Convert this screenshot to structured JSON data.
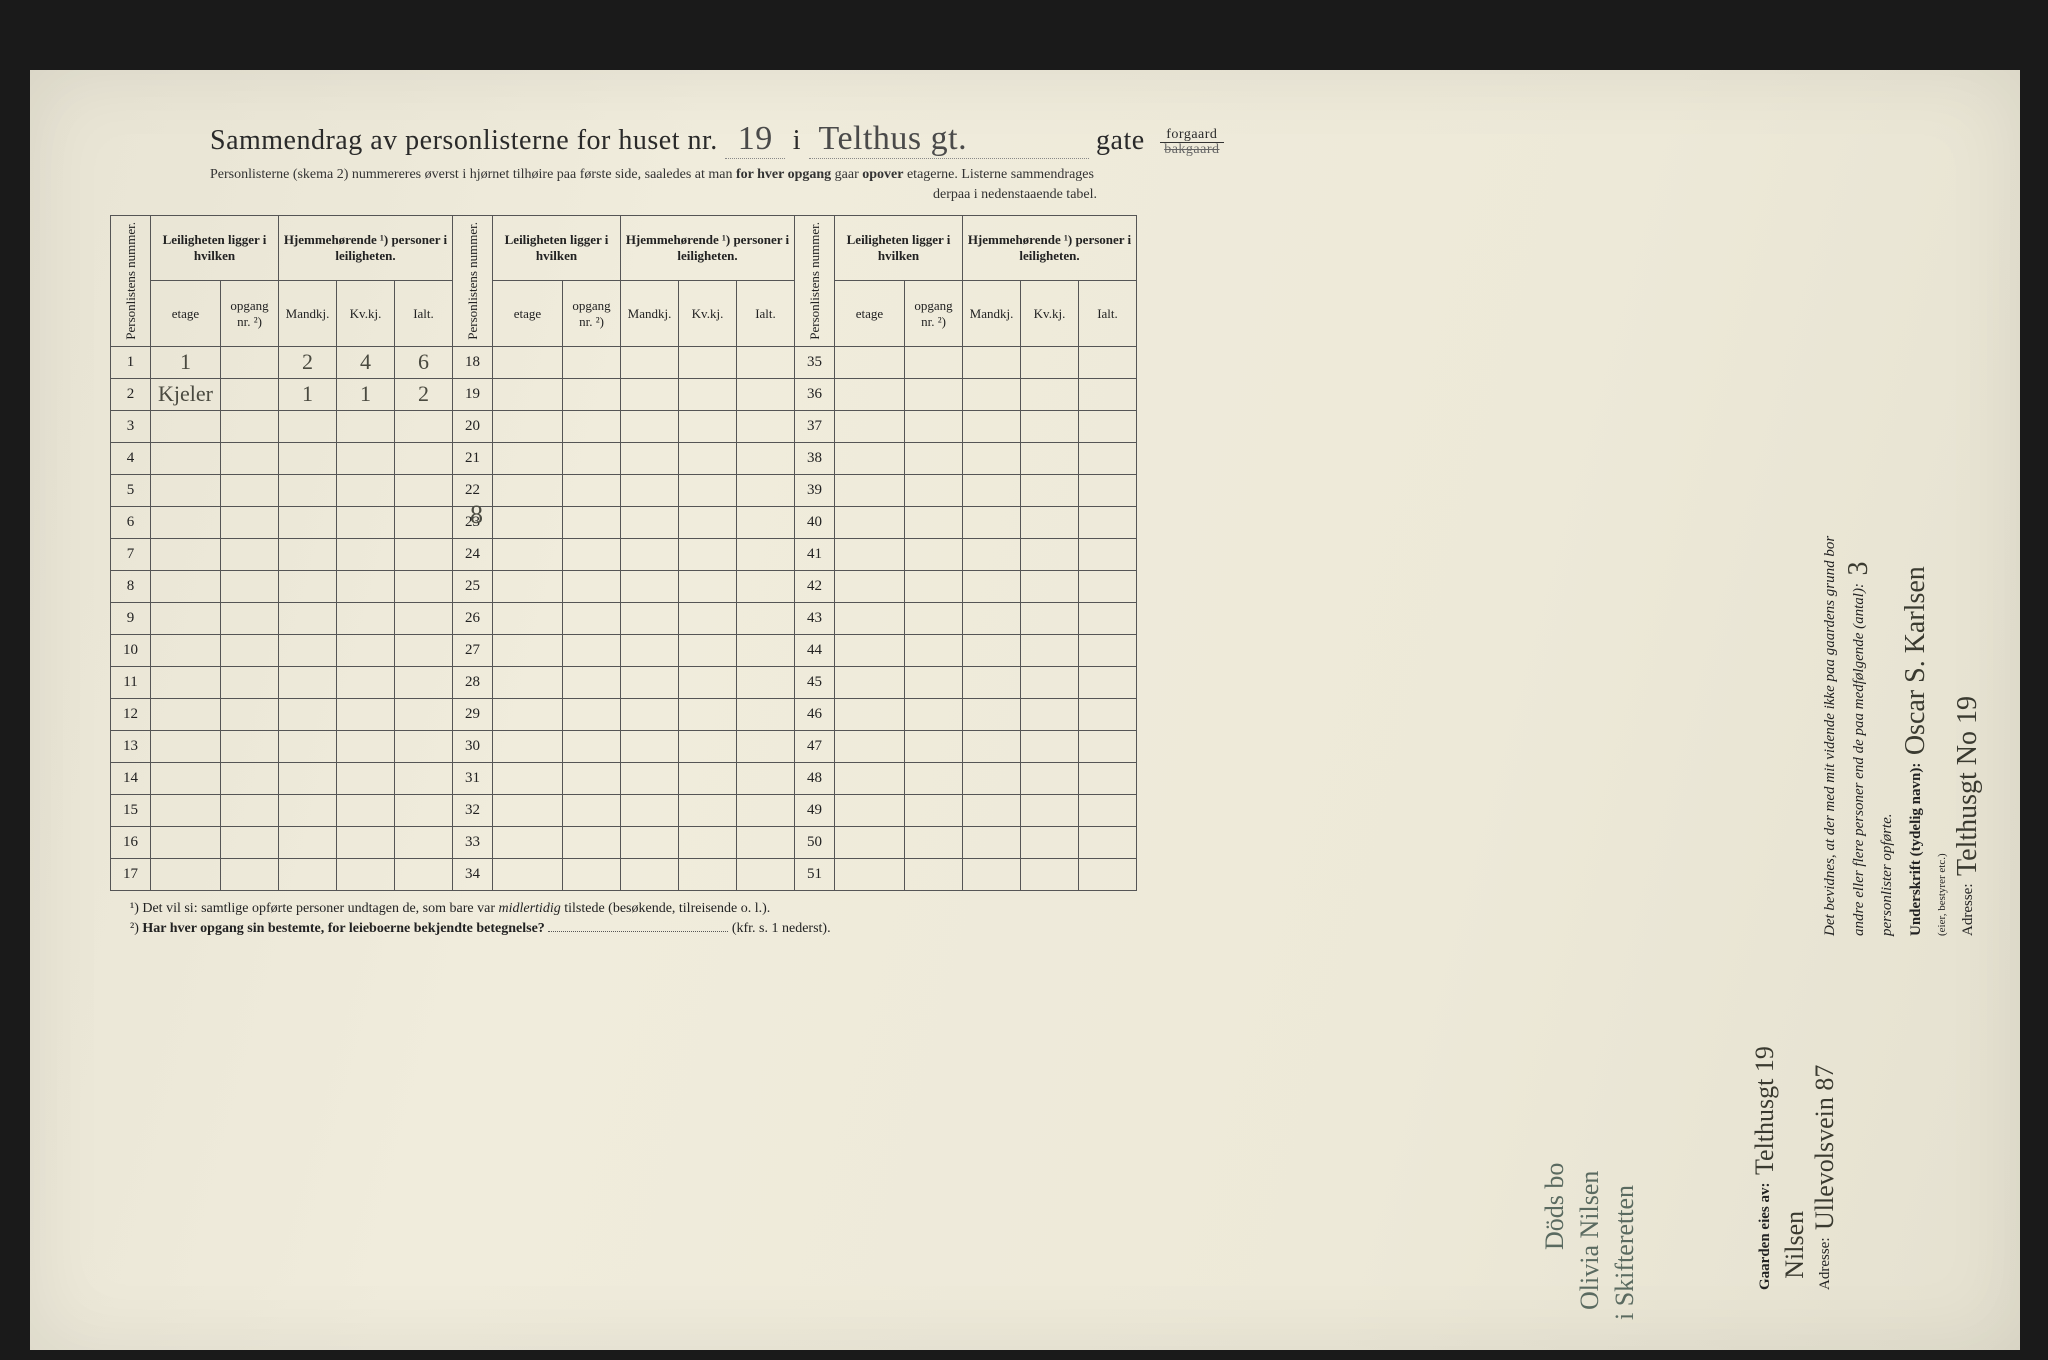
{
  "title_prefix": "Sammendrag av personlisterne for huset nr.",
  "house_nr": "19",
  "sep_i": "i",
  "street_hand": "Telthus gt.",
  "gate_label": "gate",
  "gate_top": "forgaard",
  "gate_bot": "bakgaard",
  "subtitle": "Personlisterne (skema 2) nummereres øverst i hjørnet tilhøire paa første side, saaledes at man ",
  "subtitle_bold": "for hver opgang",
  "subtitle_rest": " gaar ",
  "subtitle_bold2": "opover",
  "subtitle_rest2": " etagerne. Listerne sammendrages",
  "subtitle2": "derpaa i nedenstaaende tabel.",
  "col_personlistens": "Personlistens nummer.",
  "col_leilighet": "Leiligheten ligger i hvilken",
  "col_hjemme": "Hjemmehørende ¹) personer i leiligheten.",
  "sub_etage": "etage",
  "sub_opgang": "opgang nr. ²)",
  "sub_mandkj": "Mandkj.",
  "sub_kvkj": "Kv.kj.",
  "sub_ialt": "Ialt.",
  "rows_a": [
    1,
    2,
    3,
    4,
    5,
    6,
    7,
    8,
    9,
    10,
    11,
    12,
    13,
    14,
    15,
    16,
    17
  ],
  "rows_b": [
    18,
    19,
    20,
    21,
    22,
    23,
    24,
    25,
    26,
    27,
    28,
    29,
    30,
    31,
    32,
    33,
    34
  ],
  "rows_c": [
    35,
    36,
    37,
    38,
    39,
    40,
    41,
    42,
    43,
    44,
    45,
    46,
    47,
    48,
    49,
    50,
    51
  ],
  "data": {
    "1": {
      "etage": "1",
      "mandkj": "2",
      "kvkj": "4",
      "ialt": "6"
    },
    "2": {
      "etage": "Kjeler",
      "mandkj": "1",
      "kvkj": "1",
      "ialt": "2"
    }
  },
  "sum_hand": "8",
  "fn1_sup": "¹)",
  "fn1": "Det vil si: samtlige opførte personer undtagen de, som bare var ",
  "fn1_em": "midlertidig",
  "fn1_rest": " tilstede (besøkende, tilreisende o. l.).",
  "fn2_sup": "²)",
  "fn2": "Har hver opgang sin bestemte, for leieboerne bekjendte betegnelse?",
  "fn2_paren": "(kfr. s. 1 nederst).",
  "margin_gaarden": "Gaarden eies av:",
  "margin_gaarden_hand": "Telthusgt 19",
  "margin_hand2": "Nilsen",
  "margin_adresse": "Adresse:",
  "margin_adresse_hand": "Ullevolsvein 87",
  "margin_bevidnes": "Det bevidnes, at der med mit vidende ikke paa gaardens grund bor",
  "margin_andre": "andre eller flere personer end de paa medfølgende (antal):",
  "margin_antal": "3",
  "margin_personlister": "personlister opførte.",
  "margin_underskrift": "Underskrift (tydelig navn):",
  "margin_underskrift_hand": "Oscar S. Karlsen",
  "margin_eier": "(eier, bestyrer etc.)",
  "margin_adresse2": "Adresse:",
  "margin_adresse2_hand": "Telthusgt No 19",
  "extra_hand1": "Döds bo",
  "extra_hand2": "Olivia Nilsen",
  "extra_hand3": "i Skifteretten"
}
